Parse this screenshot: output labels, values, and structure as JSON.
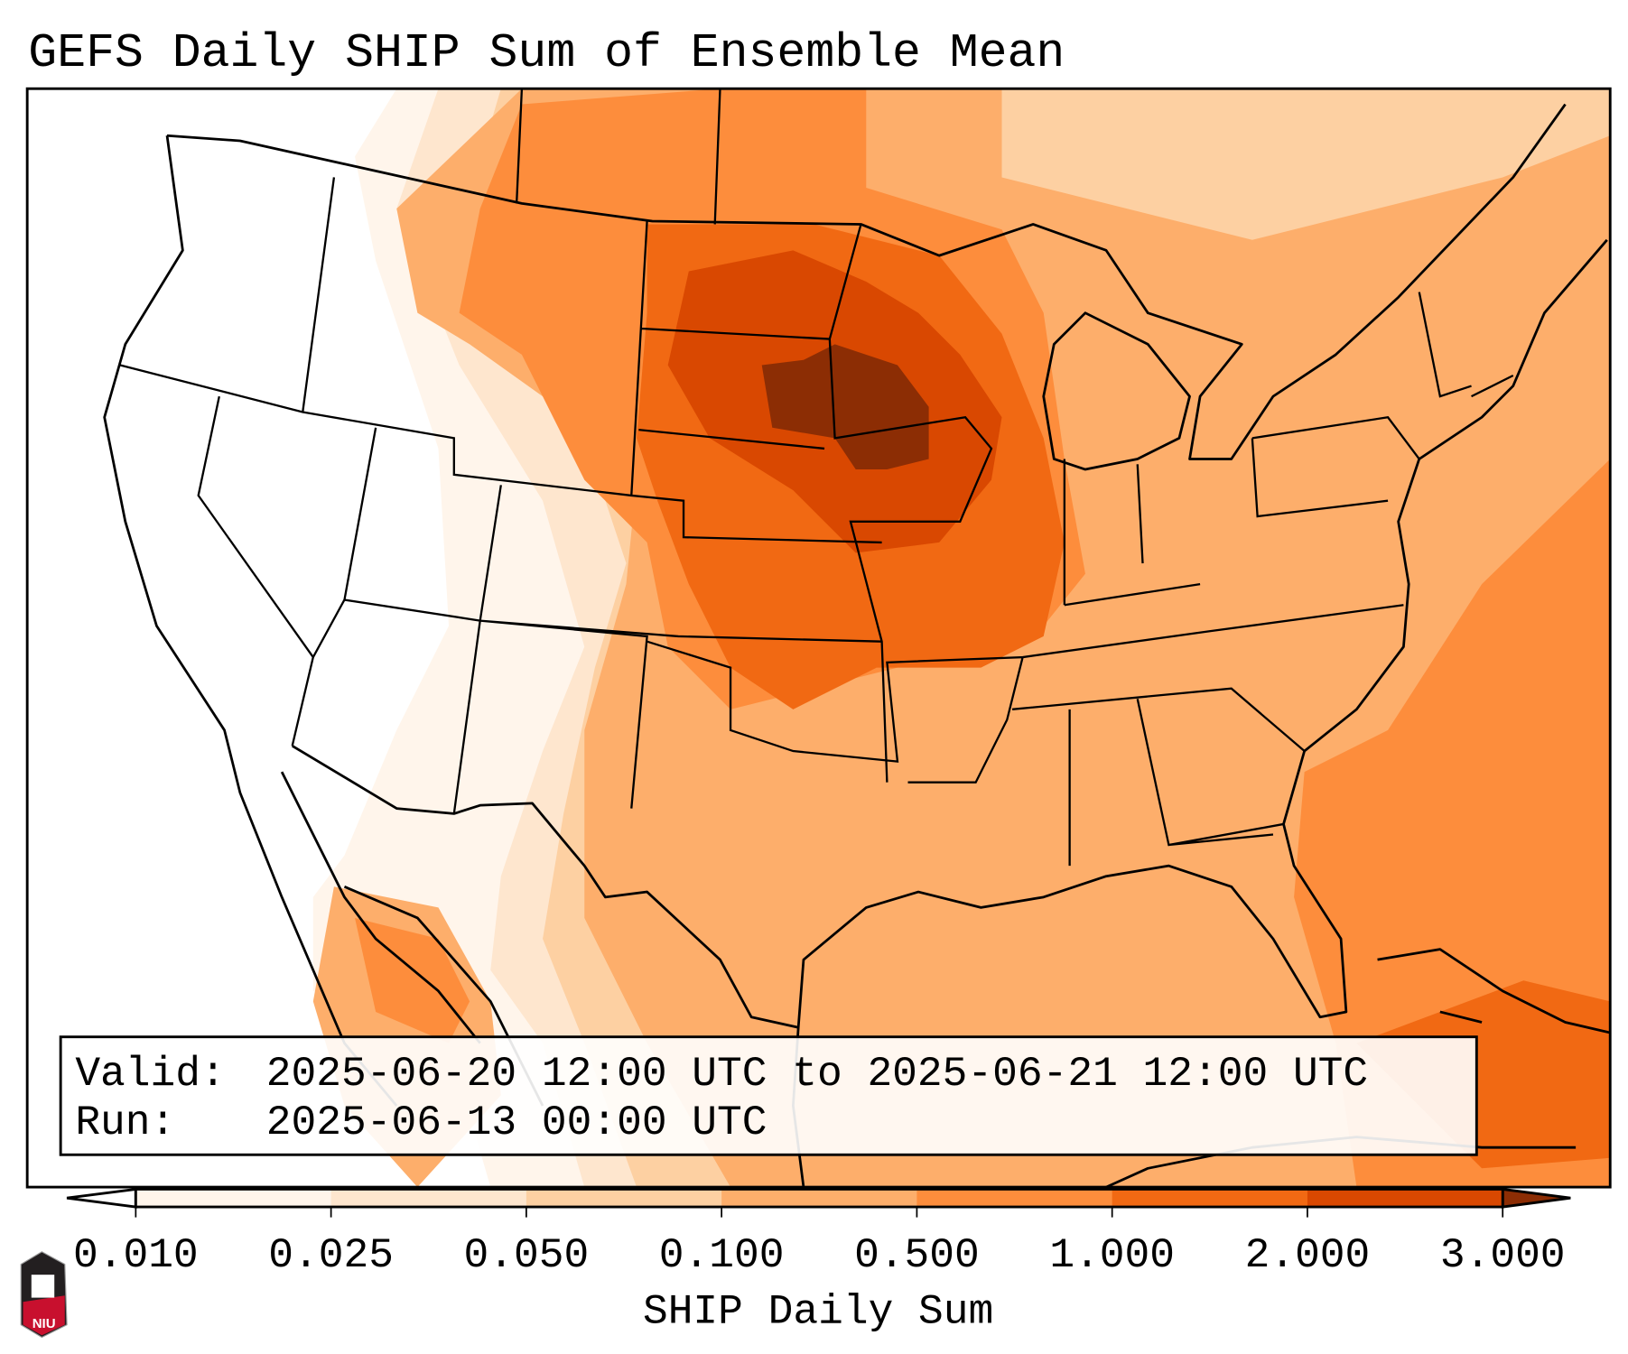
{
  "title": "GEFS Daily SHIP Sum of Ensemble Mean",
  "info_box": {
    "valid_label": "Valid:",
    "valid_value": "2025-06-20 12:00 UTC to 2025-06-21 12:00 UTC",
    "run_label": "Run:",
    "run_value": "2025-06-13 00:00 UTC"
  },
  "colorbar": {
    "label": "SHIP Daily Sum",
    "ticks": [
      "0.010",
      "0.025",
      "0.050",
      "0.100",
      "0.500",
      "1.000",
      "2.000",
      "3.000"
    ],
    "colors": [
      "#fff5eb",
      "#fee6ce",
      "#fdd0a2",
      "#fdae6b",
      "#fd8d3c",
      "#f16913",
      "#d94801"
    ],
    "under_color": "#ffffff",
    "over_color": "#8c2d04"
  },
  "logo": {
    "text": "NIU",
    "colors": {
      "dark": "#231f20",
      "red": "#c8102e"
    }
  }
}
